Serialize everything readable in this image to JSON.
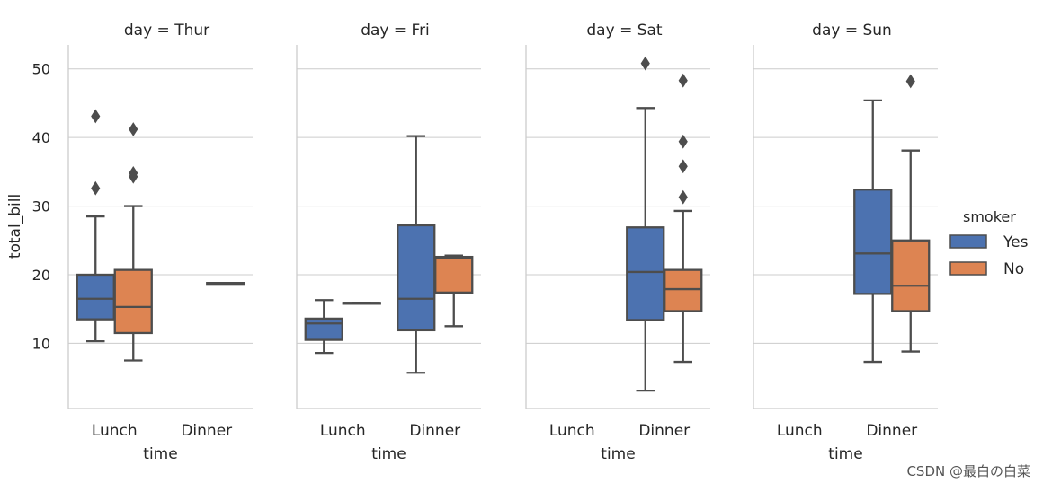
{
  "chart_data": {
    "type": "boxplot",
    "ylabel": "total_bill",
    "xlabel": "time",
    "y_ticks": [
      10,
      20,
      30,
      40,
      50
    ],
    "ylim": [
      0.5,
      53.5
    ],
    "categories": [
      "Lunch",
      "Dinner"
    ],
    "grid": "horizontal",
    "legend": {
      "title": "smoker",
      "position": "right",
      "entries": [
        {
          "name": "Yes",
          "color": "#4C72B0"
        },
        {
          "name": "No",
          "color": "#DD8452"
        }
      ]
    },
    "panels": [
      {
        "title": "day = Thur",
        "boxes": [
          {
            "category": "Lunch",
            "smoker": "Yes",
            "whislo": 10.3,
            "q1": 13.5,
            "med": 16.5,
            "q3": 20.0,
            "whishi": 28.5,
            "fliers": [
              32.6,
              43.1
            ]
          },
          {
            "category": "Lunch",
            "smoker": "No",
            "whislo": 7.5,
            "q1": 11.5,
            "med": 15.3,
            "q3": 20.7,
            "whishi": 30.0,
            "fliers": [
              34.3,
              34.8,
              41.2
            ]
          },
          {
            "category": "Dinner",
            "smoker": "No",
            "whislo": 18.8,
            "q1": 18.8,
            "med": 18.8,
            "q3": 18.8,
            "whishi": 18.8,
            "fliers": []
          }
        ]
      },
      {
        "title": "day = Fri",
        "boxes": [
          {
            "category": "Lunch",
            "smoker": "Yes",
            "whislo": 8.6,
            "q1": 10.5,
            "med": 12.9,
            "q3": 13.6,
            "whishi": 16.3,
            "fliers": []
          },
          {
            "category": "Lunch",
            "smoker": "No",
            "whislo": 15.9,
            "q1": 15.9,
            "med": 15.9,
            "q3": 15.9,
            "whishi": 15.9,
            "fliers": []
          },
          {
            "category": "Dinner",
            "smoker": "Yes",
            "whislo": 5.7,
            "q1": 11.9,
            "med": 16.5,
            "q3": 27.2,
            "whishi": 40.2,
            "fliers": []
          },
          {
            "category": "Dinner",
            "smoker": "No",
            "whislo": 12.5,
            "q1": 17.4,
            "med": 22.5,
            "q3": 22.6,
            "whishi": 22.8,
            "fliers": []
          }
        ]
      },
      {
        "title": "day = Sat",
        "boxes": [
          {
            "category": "Dinner",
            "smoker": "Yes",
            "whislo": 3.1,
            "q1": 13.4,
            "med": 20.4,
            "q3": 26.9,
            "whishi": 44.3,
            "fliers": [
              50.8
            ]
          },
          {
            "category": "Dinner",
            "smoker": "No",
            "whislo": 7.3,
            "q1": 14.7,
            "med": 17.9,
            "q3": 20.7,
            "whishi": 29.3,
            "fliers": [
              31.3,
              35.8,
              39.4,
              48.3
            ]
          }
        ]
      },
      {
        "title": "day = Sun",
        "boxes": [
          {
            "category": "Dinner",
            "smoker": "Yes",
            "whislo": 7.3,
            "q1": 17.2,
            "med": 23.1,
            "q3": 32.4,
            "whishi": 45.4,
            "fliers": []
          },
          {
            "category": "Dinner",
            "smoker": "No",
            "whislo": 8.8,
            "q1": 14.7,
            "med": 18.4,
            "q3": 25.0,
            "whishi": 38.1,
            "fliers": [
              48.2
            ]
          }
        ]
      }
    ]
  },
  "watermark": "CSDN @最白の白菜"
}
